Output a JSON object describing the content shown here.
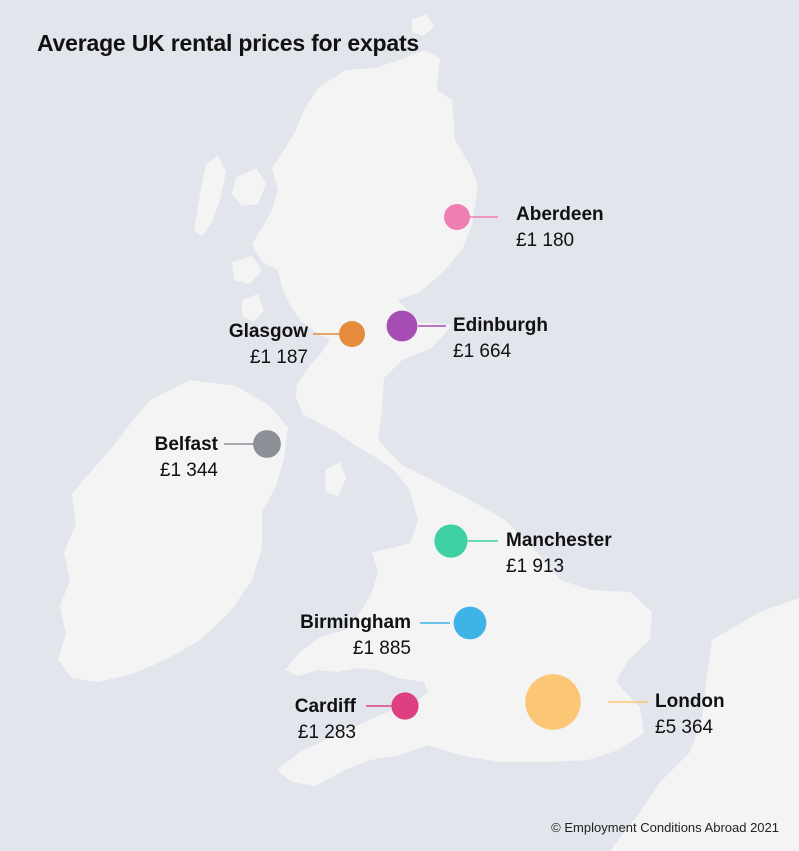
{
  "title": "Average UK rental prices for expats",
  "credit": "© Employment Conditions Abroad 2021",
  "map_colors": {
    "sea": "#e2e6ec",
    "land": "#f4f4f4"
  },
  "cities": [
    {
      "id": "aberdeen",
      "name": "Aberdeen",
      "price": "£1 180",
      "value": 1180,
      "color": "#ef7fb2"
    },
    {
      "id": "glasgow",
      "name": "Glasgow",
      "price": "£1 187",
      "value": 1187,
      "color": "#e68a3d"
    },
    {
      "id": "edinburgh",
      "name": "Edinburgh",
      "price": "£1 664",
      "value": 1664,
      "color": "#a64cb3"
    },
    {
      "id": "belfast",
      "name": "Belfast",
      "price": "£1 344",
      "value": 1344,
      "color": "#8c9096"
    },
    {
      "id": "manchester",
      "name": "Manchester",
      "price": "£1 913",
      "value": 1913,
      "color": "#3fd1a4"
    },
    {
      "id": "birmingham",
      "name": "Birmingham",
      "price": "£1 885",
      "value": 1885,
      "color": "#3db3e6"
    },
    {
      "id": "cardiff",
      "name": "Cardiff",
      "price": "£1 283",
      "value": 1283,
      "color": "#de3f82"
    },
    {
      "id": "london",
      "name": "London",
      "price": "£5 364",
      "value": 5364,
      "color": "#fbc774"
    }
  ]
}
